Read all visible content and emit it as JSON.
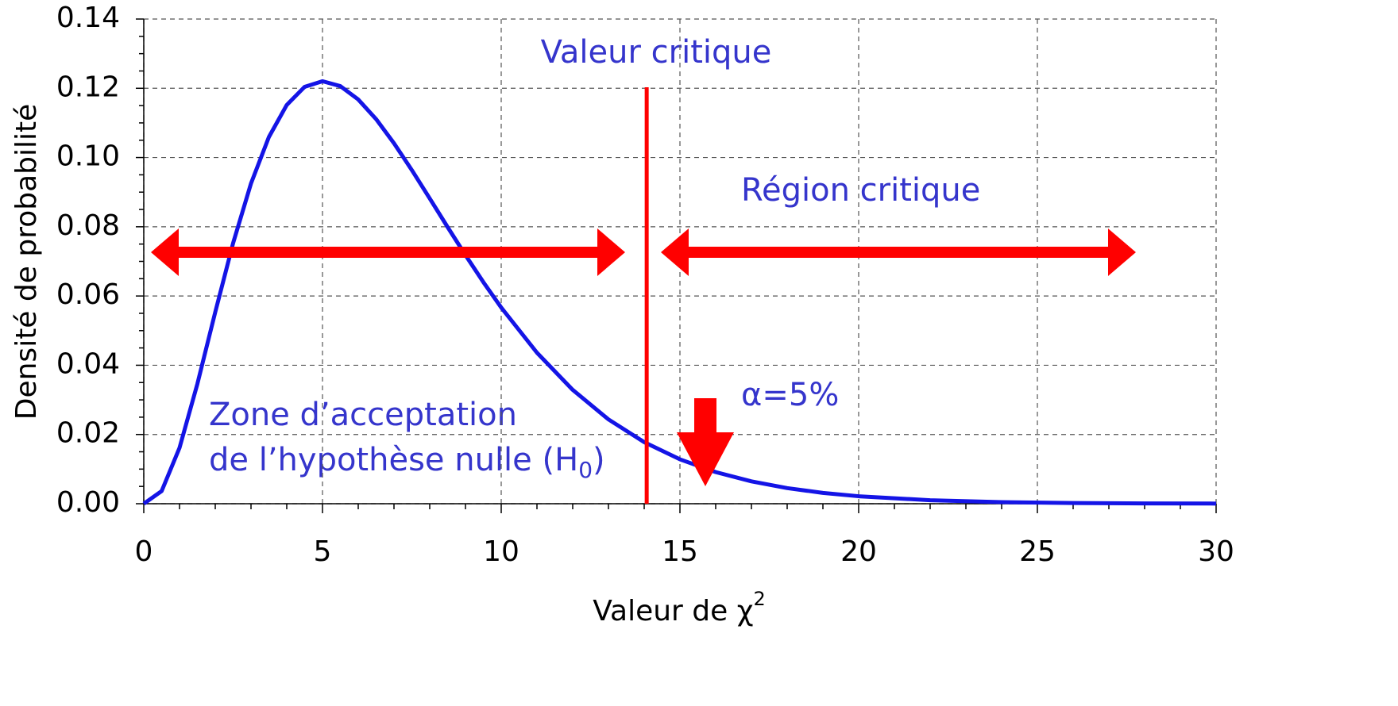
{
  "chart_data": {
    "type": "line",
    "x_label": {
      "text": "Valeur de χ",
      "superscript": "2"
    },
    "y_label": "Densité de probabilité",
    "x": [
      0,
      0.5,
      1,
      1.5,
      2,
      2.5,
      3,
      3.5,
      4,
      4.5,
      5,
      5.5,
      6,
      6.5,
      7,
      7.5,
      8,
      8.5,
      9,
      9.5,
      10,
      11,
      12,
      13,
      14,
      15,
      16,
      17,
      18,
      19,
      20,
      22,
      24,
      26,
      28,
      30
    ],
    "values": [
      0,
      0.00366,
      0.01613,
      0.03462,
      0.05535,
      0.0753,
      0.09251,
      0.10592,
      0.11518,
      0.12042,
      0.12204,
      0.12062,
      0.11677,
      0.11109,
      0.10412,
      0.09636,
      0.08818,
      0.07991,
      0.0718,
      0.06401,
      0.05667,
      0.04362,
      0.03289,
      0.02436,
      0.01779,
      0.01282,
      0.00914,
      0.00645,
      0.00451,
      0.00313,
      0.00216,
      0.00101,
      0.00046,
      0.00021,
      9e-05,
      4e-05
    ],
    "color": "#1414e6",
    "xlim": [
      0,
      30
    ],
    "xticks": [
      0,
      5,
      10,
      15,
      20,
      25,
      30
    ],
    "ylim": [
      0,
      0.14
    ],
    "yticks": [
      {
        "value": 0,
        "label": "0.00"
      },
      {
        "value": 0.02,
        "label": "0.02"
      },
      {
        "value": 0.04,
        "label": "0.04"
      },
      {
        "value": 0.06,
        "label": "0.06"
      },
      {
        "value": 0.08,
        "label": "0.08"
      },
      {
        "value": 0.1,
        "label": "0.10"
      },
      {
        "value": 0.12,
        "label": "0.12"
      },
      {
        "value": 0.14,
        "label": "0.14"
      }
    ],
    "grid": true,
    "critical_value": 14.07,
    "critical_color": "#ff0000",
    "annotations": {
      "critical_value_label": "Valeur critique",
      "critical_region_label": "Région critique",
      "alpha_label": "α=5%",
      "acceptance_line1": "Zone d’acceptation",
      "acceptance_line2": {
        "text": "de l’hypothèse nulle (H",
        "subscript": "0",
        "end": ")"
      }
    }
  }
}
